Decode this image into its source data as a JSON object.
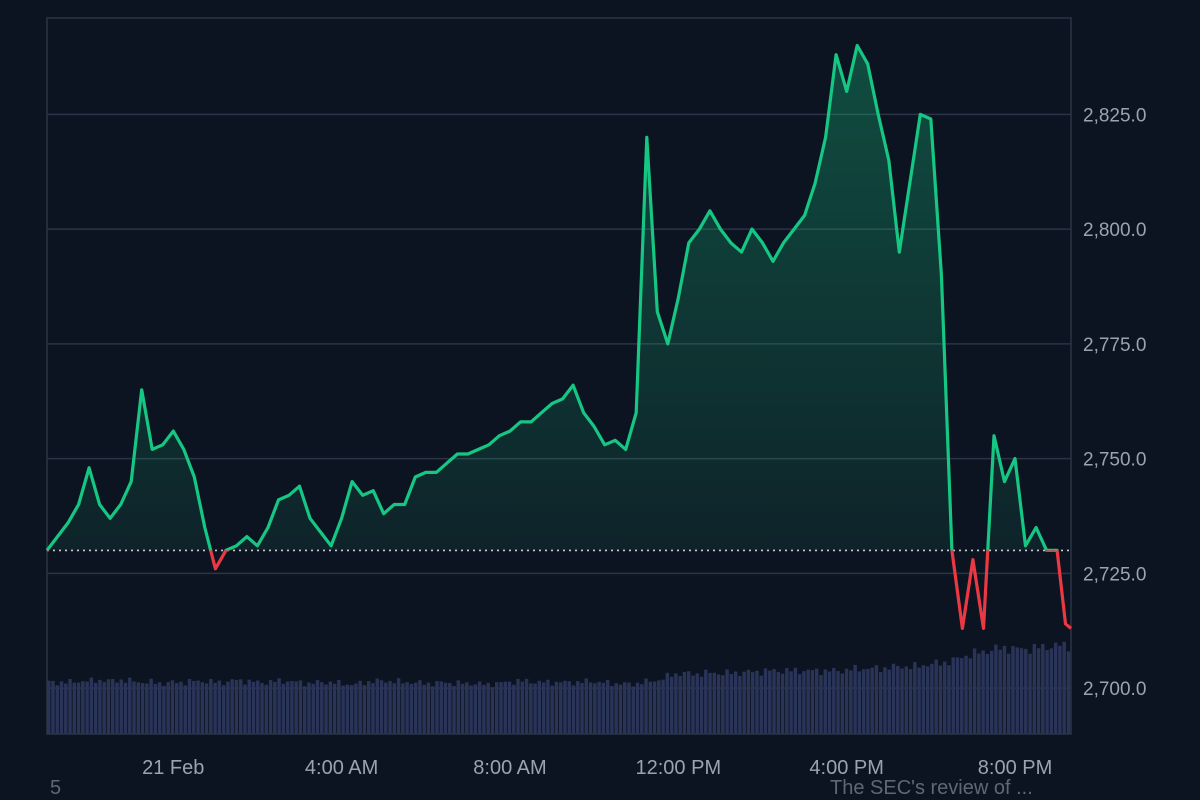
{
  "chart_data": {
    "type": "line",
    "baseline": 2730,
    "ylim": [
      2690,
      2846
    ],
    "y_ticks": [
      2700,
      2725,
      2750,
      2775,
      2800,
      2825
    ],
    "y_tick_labels": [
      "2,700.0",
      "2,725.0",
      "2,750.0",
      "2,775.0",
      "2,800.0",
      "2,825.0"
    ],
    "x_range": [
      0,
      24.33
    ],
    "x_ticks": [
      {
        "x": 3.0,
        "label": "21 Feb"
      },
      {
        "x": 7.0,
        "label": "4:00 AM"
      },
      {
        "x": 11.0,
        "label": "8:00 AM"
      },
      {
        "x": 15.0,
        "label": "12:00 PM"
      },
      {
        "x": 19.0,
        "label": "4:00 PM"
      },
      {
        "x": 23.0,
        "label": "8:00 PM"
      }
    ],
    "above_color": "#16c784",
    "below_color": "#ea3943",
    "volume_color": "#2a3458",
    "series": [
      {
        "x": [
          0.0,
          0.25,
          0.5,
          0.75,
          1.0,
          1.25,
          1.5,
          1.75,
          2.0,
          2.25,
          2.5,
          2.75,
          3.0,
          3.25,
          3.5,
          3.75,
          4.0,
          4.25,
          4.5,
          4.75,
          5.0,
          5.25,
          5.5,
          5.75,
          6.0,
          6.25,
          6.5,
          6.75,
          7.0,
          7.25,
          7.5,
          7.75,
          8.0,
          8.25,
          8.5,
          8.75,
          9.0,
          9.25,
          9.5,
          9.75,
          10.0,
          10.25,
          10.5,
          10.75,
          11.0,
          11.25,
          11.5,
          11.75,
          12.0,
          12.25,
          12.5,
          12.75,
          13.0,
          13.25,
          13.5,
          13.75,
          14.0,
          14.25,
          14.5,
          14.75,
          15.0,
          15.25,
          15.5,
          15.75,
          16.0,
          16.25,
          16.5,
          16.75,
          17.0,
          17.25,
          17.5,
          17.75,
          18.0,
          18.25,
          18.5,
          18.75,
          19.0,
          19.25,
          19.5,
          19.75,
          20.0,
          20.25,
          20.5,
          20.75,
          21.0,
          21.25,
          21.5,
          21.75,
          22.0,
          22.25,
          22.5,
          22.75,
          23.0,
          23.25,
          23.5,
          23.75,
          24.0,
          24.2,
          24.33
        ],
        "values": [
          2730,
          2733,
          2736,
          2740,
          2748,
          2740,
          2737,
          2740,
          2745,
          2765,
          2752,
          2753,
          2756,
          2752,
          2746,
          2735,
          2726,
          2730,
          2731,
          2733,
          2731,
          2735,
          2741,
          2742,
          2744,
          2737,
          2734,
          2731,
          2737,
          2745,
          2742,
          2743,
          2738,
          2740,
          2740,
          2746,
          2747,
          2747,
          2749,
          2751,
          2751,
          2752,
          2753,
          2755,
          2756,
          2758,
          2758,
          2760,
          2762,
          2763,
          2766,
          2760,
          2757,
          2753,
          2754,
          2752,
          2760,
          2820,
          2782,
          2775,
          2785,
          2797,
          2800,
          2804,
          2800,
          2797,
          2795,
          2800,
          2797,
          2793,
          2797,
          2800,
          2803,
          2810,
          2820,
          2838,
          2830,
          2840,
          2836,
          2825,
          2815,
          2795,
          2810,
          2825,
          2824,
          2790,
          2730,
          2713,
          2728,
          2713,
          2755,
          2745,
          2750,
          2731,
          2735,
          2730,
          2730,
          2714,
          2713
        ],
        "volume": [
          0.45,
          0.45,
          0.45,
          0.46,
          0.46,
          0.47,
          0.46,
          0.47,
          0.46,
          0.45,
          0.45,
          0.44,
          0.45,
          0.45,
          0.46,
          0.46,
          0.45,
          0.45,
          0.47,
          0.46,
          0.45,
          0.45,
          0.46,
          0.46,
          0.45,
          0.44,
          0.45,
          0.45,
          0.44,
          0.43,
          0.44,
          0.46,
          0.46,
          0.46,
          0.45,
          0.45,
          0.44,
          0.44,
          0.45,
          0.44,
          0.44,
          0.44,
          0.43,
          0.44,
          0.45,
          0.46,
          0.46,
          0.45,
          0.45,
          0.45,
          0.45,
          0.45,
          0.46,
          0.45,
          0.44,
          0.44,
          0.43,
          0.45,
          0.46,
          0.48,
          0.52,
          0.53,
          0.52,
          0.53,
          0.53,
          0.53,
          0.53,
          0.54,
          0.54,
          0.55,
          0.55,
          0.55,
          0.55,
          0.55,
          0.55,
          0.55,
          0.55,
          0.56,
          0.57,
          0.57,
          0.57,
          0.58,
          0.59,
          0.58,
          0.6,
          0.61,
          0.62,
          0.64,
          0.68,
          0.7,
          0.72,
          0.74,
          0.75,
          0.74,
          0.74,
          0.75,
          0.76,
          0.77,
          0.77
        ]
      }
    ]
  },
  "footer": {
    "left_text": "5",
    "news_text": "The SEC's review of ..."
  }
}
